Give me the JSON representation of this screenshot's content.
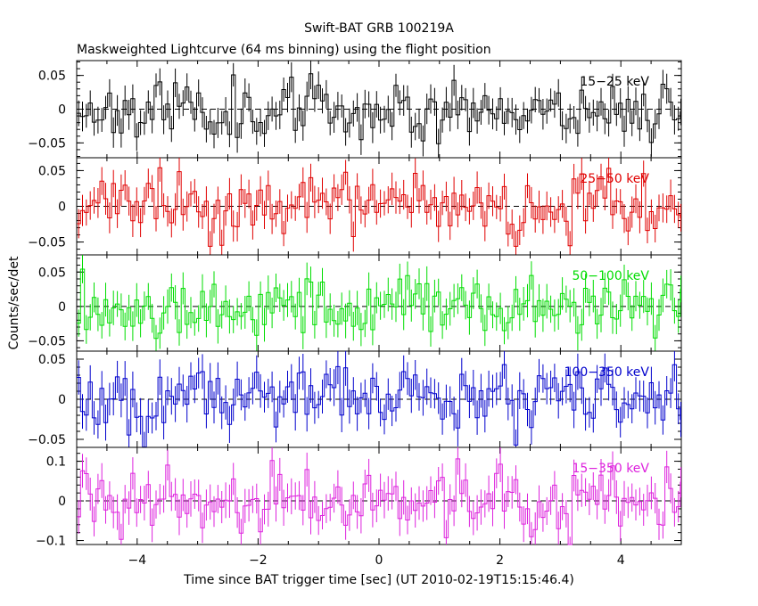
{
  "figure": {
    "title": "Swift-BAT GRB 100219A",
    "subtitle": "Maskweighted Lightcurve (64 ms binning) using the flight position",
    "xlabel": "Time since BAT trigger time [sec] (UT 2010-02-19T15:15:46.4)",
    "ylabel": "Counts/sec/det",
    "x_ticks": [
      "−4",
      "−2",
      "0",
      "2",
      "4"
    ]
  },
  "chart_data": [
    {
      "type": "line",
      "series": [
        {
          "name": "15−25 keV",
          "color": "#000000"
        }
      ],
      "xlim": [
        -5,
        5
      ],
      "ylim": [
        -0.072,
        0.072
      ],
      "y_ticks": [
        {
          "value": 0.05,
          "label": "0.05"
        },
        {
          "value": 0,
          "label": "0"
        },
        {
          "value": -0.05,
          "label": "−0.05"
        }
      ],
      "amplitude": 0.022,
      "error": 0.02,
      "seed": 11,
      "zero_line": "dashed"
    },
    {
      "type": "line",
      "series": [
        {
          "name": "25−50 keV",
          "color": "#e00000"
        }
      ],
      "xlim": [
        -5,
        5
      ],
      "ylim": [
        -0.068,
        0.068
      ],
      "y_ticks": [
        {
          "value": 0.05,
          "label": "0.05"
        },
        {
          "value": 0,
          "label": "0"
        },
        {
          "value": -0.05,
          "label": "−0.05"
        }
      ],
      "amplitude": 0.022,
      "error": 0.02,
      "seed": 23,
      "zero_line": "dashed"
    },
    {
      "type": "line",
      "series": [
        {
          "name": "50−100 keV",
          "color": "#00dd00"
        }
      ],
      "xlim": [
        -5,
        5
      ],
      "ylim": [
        -0.065,
        0.075
      ],
      "y_ticks": [
        {
          "value": 0.05,
          "label": "0.05"
        },
        {
          "value": 0,
          "label": "0"
        },
        {
          "value": -0.05,
          "label": "−0.05"
        }
      ],
      "amplitude": 0.022,
      "error": 0.022,
      "seed": 37,
      "zero_line": "dashed"
    },
    {
      "type": "line",
      "series": [
        {
          "name": "100−350 keV",
          "color": "#0000cc"
        }
      ],
      "xlim": [
        -5,
        5
      ],
      "ylim": [
        -0.06,
        0.06
      ],
      "y_ticks": [
        {
          "value": 0.05,
          "label": "0.05"
        },
        {
          "value": 0,
          "label": "0"
        },
        {
          "value": -0.05,
          "label": "−0.05"
        }
      ],
      "amplitude": 0.02,
      "error": 0.02,
      "seed": 51,
      "zero_line": "dashed"
    },
    {
      "type": "line",
      "series": [
        {
          "name": "15−350 keV",
          "color": "#dd22dd"
        }
      ],
      "xlim": [
        -5,
        5
      ],
      "ylim": [
        -0.11,
        0.135
      ],
      "y_ticks": [
        {
          "value": 0.1,
          "label": "0.1"
        },
        {
          "value": 0,
          "label": "0"
        },
        {
          "value": -0.1,
          "label": "−0.1"
        }
      ],
      "amplitude": 0.04,
      "error": 0.04,
      "seed": 67,
      "zero_line": "dashed"
    }
  ]
}
